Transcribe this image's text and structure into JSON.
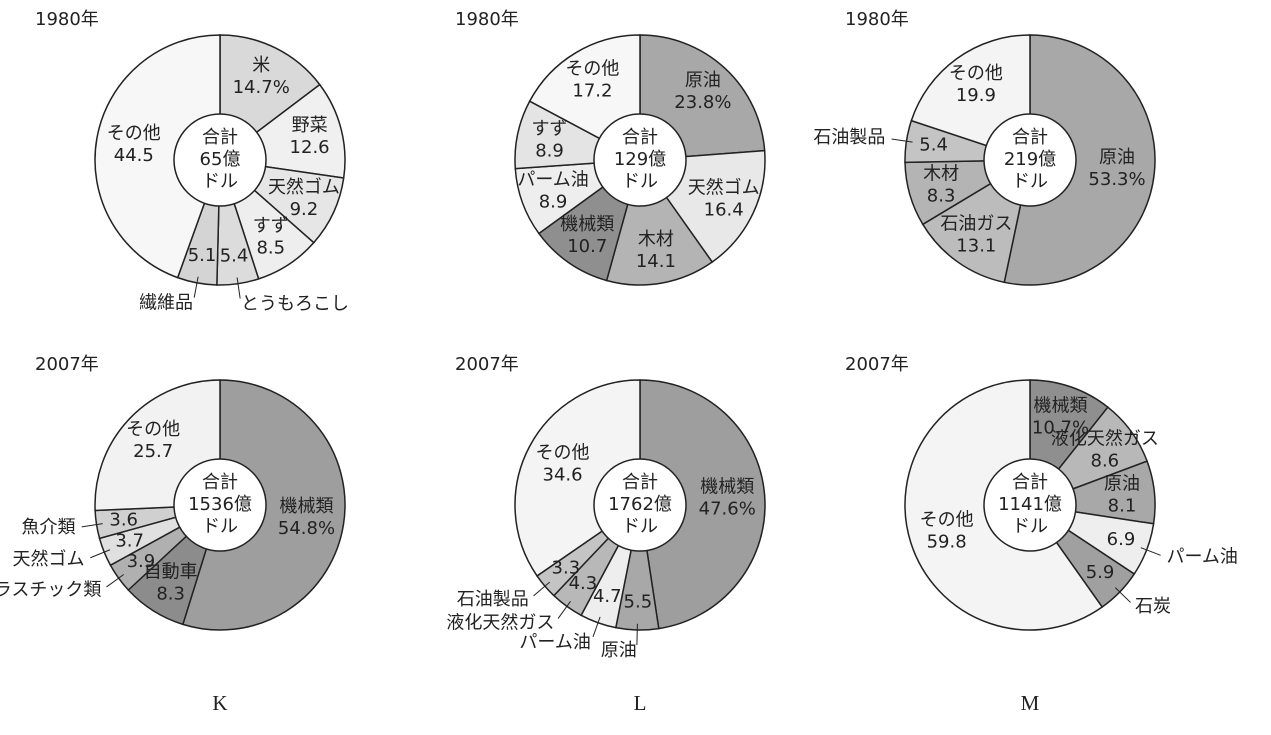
{
  "chart_data": [
    {
      "type": "pie",
      "title": "1980年",
      "center_label": [
        "合計",
        "65億",
        "ドル"
      ],
      "categories": [
        "米",
        "野菜",
        "天然ゴム",
        "すず",
        "とうもろこし",
        "繊維品",
        "その他"
      ],
      "values": [
        14.7,
        12.6,
        9.2,
        8.5,
        5.4,
        5.1,
        44.5
      ],
      "value_labels": [
        "14.7%",
        "12.6",
        "9.2",
        "8.5",
        "5.4",
        "5.1",
        "44.5"
      ],
      "colors": [
        "#d9d9d9",
        "#f0f0f0",
        "#e6e6e6",
        "#eeeeee",
        "#dcdcdc",
        "#d4d4d4",
        "#f7f7f7"
      ]
    },
    {
      "type": "pie",
      "title": "1980年",
      "center_label": [
        "合計",
        "129億",
        "ドル"
      ],
      "categories": [
        "原油",
        "天然ゴム",
        "木材",
        "機械類",
        "パーム油",
        "すず",
        "その他"
      ],
      "values": [
        23.8,
        16.4,
        14.1,
        10.7,
        8.9,
        8.9,
        17.2
      ],
      "value_labels": [
        "23.8%",
        "16.4",
        "14.1",
        "10.7",
        "8.9",
        "8.9",
        "17.2"
      ],
      "colors": [
        "#a8a8a8",
        "#e8e8e8",
        "#b4b4b4",
        "#8f8f8f",
        "#eeeeee",
        "#e4e4e4",
        "#f7f7f7"
      ]
    },
    {
      "type": "pie",
      "title": "1980年",
      "center_label": [
        "合計",
        "219億",
        "ドル"
      ],
      "categories": [
        "原油",
        "石油ガス",
        "木材",
        "石油製品",
        "その他"
      ],
      "values": [
        53.3,
        13.1,
        8.3,
        5.4,
        19.9
      ],
      "value_labels": [
        "53.3%",
        "13.1",
        "8.3",
        "5.4",
        "19.9"
      ],
      "colors": [
        "#a8a8a8",
        "#bcbcbc",
        "#b4b4b4",
        "#c4c4c4",
        "#f4f4f4"
      ]
    },
    {
      "type": "pie",
      "title": "2007年",
      "center_label": [
        "合計",
        "1536億",
        "ドル"
      ],
      "categories": [
        "機械類",
        "自動車",
        "プラスチック類",
        "天然ゴム",
        "魚介類",
        "その他"
      ],
      "values": [
        54.8,
        8.3,
        3.9,
        3.7,
        3.6,
        25.7
      ],
      "value_labels": [
        "54.8%",
        "8.3",
        "3.9",
        "3.7",
        "3.6",
        "25.7"
      ],
      "colors": [
        "#9e9e9e",
        "#8c8c8c",
        "#b0b0b0",
        "#e0e0e0",
        "#d0d0d0",
        "#f2f2f2"
      ]
    },
    {
      "type": "pie",
      "title": "2007年",
      "center_label": [
        "合計",
        "1762億",
        "ドル"
      ],
      "categories": [
        "機械類",
        "原油",
        "パーム油",
        "液化天然ガス",
        "石油製品",
        "その他"
      ],
      "values": [
        47.6,
        5.5,
        4.7,
        4.3,
        3.3,
        34.6
      ],
      "value_labels": [
        "47.6%",
        "5.5",
        "4.7",
        "4.3",
        "3.3",
        "34.6"
      ],
      "colors": [
        "#9e9e9e",
        "#a8a8a8",
        "#eeeeee",
        "#b8b8b8",
        "#c4c4c4",
        "#f4f4f4"
      ]
    },
    {
      "type": "pie",
      "title": "2007年",
      "center_label": [
        "合計",
        "1141億",
        "ドル"
      ],
      "categories": [
        "機械類",
        "液化天然ガス",
        "原油",
        "パーム油",
        "石炭",
        "その他"
      ],
      "values": [
        10.7,
        8.6,
        8.1,
        6.9,
        5.9,
        59.8
      ],
      "value_labels": [
        "10.7%",
        "8.6",
        "8.1",
        "6.9",
        "5.9",
        "59.8"
      ],
      "colors": [
        "#8f8f8f",
        "#b8b8b8",
        "#a8a8a8",
        "#eeeeee",
        "#a0a0a0",
        "#f4f4f4"
      ]
    }
  ],
  "panels": [
    "K",
    "L",
    "M"
  ]
}
